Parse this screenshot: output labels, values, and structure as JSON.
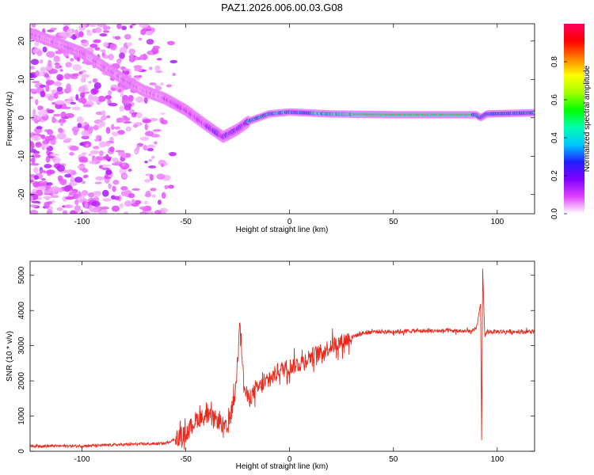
{
  "figure": {
    "title": "PAZ1.2026.006.00.03.G08"
  },
  "chart_data": [
    {
      "type": "heatmap",
      "name": "spectrogram",
      "title": "PAZ1.2026.006.00.03.G08",
      "xlabel": "Height of straight line (km)",
      "ylabel": "Frequency (Hz)",
      "xlim": [
        -125,
        118
      ],
      "ylim": [
        -25,
        24.5
      ],
      "xticks": [
        -100,
        -50,
        0,
        50,
        100
      ],
      "xtick_labels": [
        "-100",
        "-50",
        "0",
        "50",
        "100"
      ],
      "yticks": [
        -20,
        -10,
        0,
        10,
        20
      ],
      "ytick_labels": [
        "-20",
        "-10",
        "0",
        "10",
        "20"
      ],
      "colorbar": {
        "label": "Normalized spectral amplitude",
        "range": [
          0,
          1
        ],
        "ticks": [
          0.0,
          0.2,
          0.4,
          0.6,
          0.8
        ],
        "tick_labels": [
          "0.0",
          "0.2",
          "0.4",
          "0.6",
          "0.8"
        ],
        "colors": [
          "#ffffff",
          "#e040ff",
          "#8000ff",
          "#2020ff",
          "#00c8ff",
          "#00ffb0",
          "#00ff00",
          "#a0ff00",
          "#ffff00",
          "#ff8000",
          "#ff0000",
          "#ff0060"
        ]
      },
      "ridge": {
        "description_points_x": [
          -125,
          -100,
          -80,
          -70,
          -60,
          -50,
          -40,
          -32,
          -25,
          -20,
          -10,
          0,
          20,
          50,
          80,
          90,
          92,
          95,
          118
        ],
        "frequency_hz": [
          22,
          17,
          10,
          7,
          5,
          2,
          -2,
          -5,
          -3,
          -1,
          1,
          1.5,
          1,
          0.8,
          0.8,
          0.8,
          0,
          1,
          1.3
        ]
      }
    },
    {
      "type": "line",
      "name": "snr",
      "xlabel": "Height of straight line (km)",
      "ylabel": "SNR (10 * v/v)",
      "xlim": [
        -125,
        118
      ],
      "ylim": [
        0,
        5400
      ],
      "xticks": [
        -100,
        -50,
        0,
        50,
        100
      ],
      "xtick_labels": [
        "-100",
        "-50",
        "0",
        "50",
        "100"
      ],
      "yticks": [
        0,
        1000,
        2000,
        3000,
        4000,
        5000
      ],
      "ytick_labels": [
        "0",
        "1000",
        "2000",
        "3000",
        "4000",
        "5000"
      ],
      "color": "#e8291c",
      "x": [
        -125,
        -100,
        -75,
        -60,
        -55,
        -50,
        -45,
        -40,
        -35,
        -30,
        -26,
        -24,
        -22,
        -20,
        -15,
        -10,
        -5,
        0,
        5,
        10,
        15,
        20,
        25,
        30,
        35,
        40,
        50,
        60,
        70,
        80,
        88,
        90,
        92,
        92.5,
        93,
        94,
        95,
        100,
        110,
        118
      ],
      "values": [
        150,
        150,
        200,
        220,
        350,
        500,
        900,
        1000,
        900,
        600,
        1700,
        3850,
        1800,
        1500,
        1800,
        2000,
        2300,
        2400,
        2500,
        2700,
        2800,
        3000,
        3100,
        3250,
        3350,
        3400,
        3400,
        3420,
        3420,
        3420,
        3400,
        3500,
        4200,
        200,
        5200,
        3200,
        3400,
        3400,
        3400,
        3400
      ]
    }
  ]
}
